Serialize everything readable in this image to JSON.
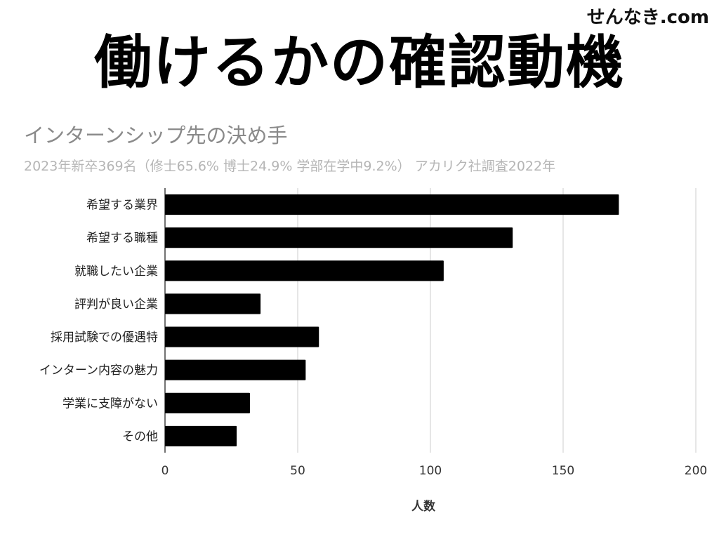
{
  "header": {
    "site": "せんなき.com",
    "title": "働けるかの確認動機"
  },
  "chart_data": {
    "type": "bar",
    "orientation": "horizontal",
    "title": "インターンシップ先の決め手",
    "subtitle": "2023年新卒369名（修士65.6% 博士24.9% 学部在学中9.2%） アカリク社調査2022年",
    "categories": [
      "希望する業界",
      "希望する職種",
      "就職したい企業",
      "評判が良い企業",
      "採用試験での優遇特",
      "インターン内容の魅力",
      "学業に支障がない",
      "その他"
    ],
    "values": [
      171,
      131,
      105,
      36,
      58,
      53,
      32,
      27
    ],
    "xlabel": "人数",
    "ylabel": "",
    "xlim": [
      0,
      200
    ],
    "xticks": [
      0,
      50,
      100,
      150,
      200
    ],
    "grid": true,
    "bar_color": "#000000",
    "grid_color": "#cccccc"
  }
}
